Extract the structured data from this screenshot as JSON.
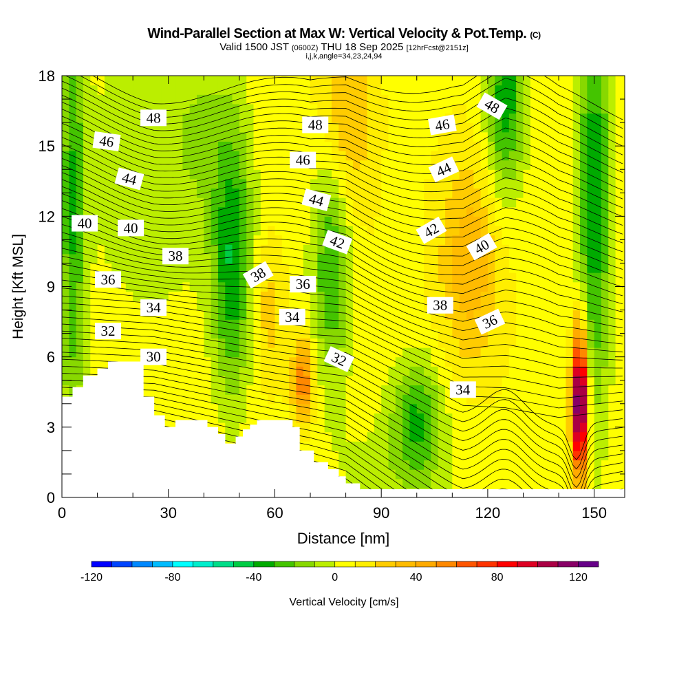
{
  "title": "Wind-Parallel Section at Max W: Vertical Velocity & Pot.Temp.",
  "title_mark": "(C)",
  "subtitle_a": "Valid 1500 JST",
  "subtitle_b": "(0600Z)",
  "subtitle_c": "THU 18 Sep 2025",
  "subtitle_d": "[12hrFcst@2151z]",
  "subtitle2": "i,j,k,angle=34,23,24,94",
  "chart_data": {
    "type": "heatmap",
    "xlabel": "Distance [nm]",
    "ylabel": "Height [Kft MSL]",
    "xlim": [
      0,
      158.6
    ],
    "ylim": [
      0,
      18
    ],
    "xticks": [
      0,
      30,
      60,
      90,
      120,
      150
    ],
    "yticks": [
      0,
      3,
      6,
      9,
      12,
      15,
      18
    ],
    "colorbar": {
      "label": "Vertical Velocity [cm/s]",
      "min": -120,
      "max": 130,
      "step": 10,
      "ticks": [
        -120,
        -80,
        -40,
        0,
        40,
        80,
        120
      ],
      "colors": [
        "#0000ff",
        "#0044ff",
        "#0088ff",
        "#00bbff",
        "#00ffff",
        "#00eecc",
        "#00dd88",
        "#00cc44",
        "#00aa00",
        "#44c400",
        "#88d800",
        "#bbee00",
        "#ffff00",
        "#ffee00",
        "#ffcc00",
        "#ffbb00",
        "#ffaa00",
        "#ff8800",
        "#ff5500",
        "#ff3300",
        "#ff0000",
        "#dd0022",
        "#aa0044",
        "#880066",
        "#660088"
      ]
    },
    "contour_field": "Potential Temperature",
    "contour_labels": [
      {
        "x": 25.8,
        "z": 16.2,
        "t": "48",
        "a": 0
      },
      {
        "x": 12.6,
        "z": 15.2,
        "t": "46",
        "a": 8
      },
      {
        "x": 19,
        "z": 13.6,
        "t": "44",
        "a": 15
      },
      {
        "x": 6.4,
        "z": 11.7,
        "t": "40",
        "a": 0
      },
      {
        "x": 19.4,
        "z": 11.5,
        "t": "40",
        "a": 0
      },
      {
        "x": 32,
        "z": 10.3,
        "t": "38",
        "a": 0
      },
      {
        "x": 13,
        "z": 9.3,
        "t": "36",
        "a": 0
      },
      {
        "x": 25.8,
        "z": 8.1,
        "t": "34",
        "a": 0
      },
      {
        "x": 13,
        "z": 7.1,
        "t": "32",
        "a": 0
      },
      {
        "x": 25.8,
        "z": 6.0,
        "t": "30",
        "a": 0
      },
      {
        "x": 71.4,
        "z": 15.9,
        "t": "48",
        "a": 0
      },
      {
        "x": 67.9,
        "z": 14.4,
        "t": "46",
        "a": 0
      },
      {
        "x": 71.7,
        "z": 12.7,
        "t": "44",
        "a": 15
      },
      {
        "x": 77.6,
        "z": 10.9,
        "t": "42",
        "a": 20
      },
      {
        "x": 55.3,
        "z": 9.5,
        "t": "38",
        "a": -30
      },
      {
        "x": 67.9,
        "z": 9.1,
        "t": "36",
        "a": 0
      },
      {
        "x": 64.9,
        "z": 7.7,
        "t": "34",
        "a": 0
      },
      {
        "x": 78.1,
        "z": 5.9,
        "t": "32",
        "a": 25
      },
      {
        "x": 121.2,
        "z": 16.7,
        "t": "48",
        "a": 30
      },
      {
        "x": 107.2,
        "z": 15.9,
        "t": "46",
        "a": -10
      },
      {
        "x": 107.6,
        "z": 14.0,
        "t": "44",
        "a": -25
      },
      {
        "x": 104.1,
        "z": 11.4,
        "t": "42",
        "a": -30
      },
      {
        "x": 118.3,
        "z": 10.7,
        "t": "40",
        "a": -30
      },
      {
        "x": 106.6,
        "z": 8.2,
        "t": "38",
        "a": 0
      },
      {
        "x": 120.6,
        "z": 7.5,
        "t": "36",
        "a": -25
      },
      {
        "x": 113,
        "z": 4.6,
        "t": "34",
        "a": 0
      }
    ],
    "terrain": [
      [
        0,
        4.3
      ],
      [
        3,
        4.3
      ],
      [
        3,
        4.7
      ],
      [
        6,
        4.7
      ],
      [
        6,
        5.2
      ],
      [
        10,
        5.2
      ],
      [
        10,
        5.5
      ],
      [
        13,
        5.5
      ],
      [
        13,
        5.8
      ],
      [
        23,
        5.8
      ],
      [
        23,
        4.3
      ],
      [
        26,
        4.3
      ],
      [
        26,
        3.5
      ],
      [
        29,
        3.5
      ],
      [
        29,
        3.0
      ],
      [
        32,
        3.0
      ],
      [
        32,
        3.3
      ],
      [
        41,
        3.3
      ],
      [
        41,
        3.0
      ],
      [
        44,
        3.0
      ],
      [
        44,
        2.7
      ],
      [
        46,
        2.7
      ],
      [
        46,
        2.3
      ],
      [
        49,
        2.3
      ],
      [
        49,
        2.6
      ],
      [
        51,
        2.6
      ],
      [
        51,
        2.9
      ],
      [
        53,
        2.9
      ],
      [
        53,
        3.1
      ],
      [
        55,
        3.1
      ],
      [
        55,
        3.3
      ],
      [
        65,
        3.3
      ],
      [
        65,
        3.0
      ],
      [
        67,
        3.0
      ],
      [
        67,
        2.0
      ],
      [
        71,
        2.0
      ],
      [
        71,
        1.5
      ],
      [
        75,
        1.5
      ],
      [
        75,
        1.2
      ],
      [
        78,
        1.2
      ],
      [
        78,
        0.9
      ],
      [
        80,
        0.9
      ],
      [
        80,
        0.6
      ],
      [
        84,
        0.6
      ],
      [
        84,
        0.35
      ],
      [
        158.6,
        0.35
      ]
    ]
  }
}
